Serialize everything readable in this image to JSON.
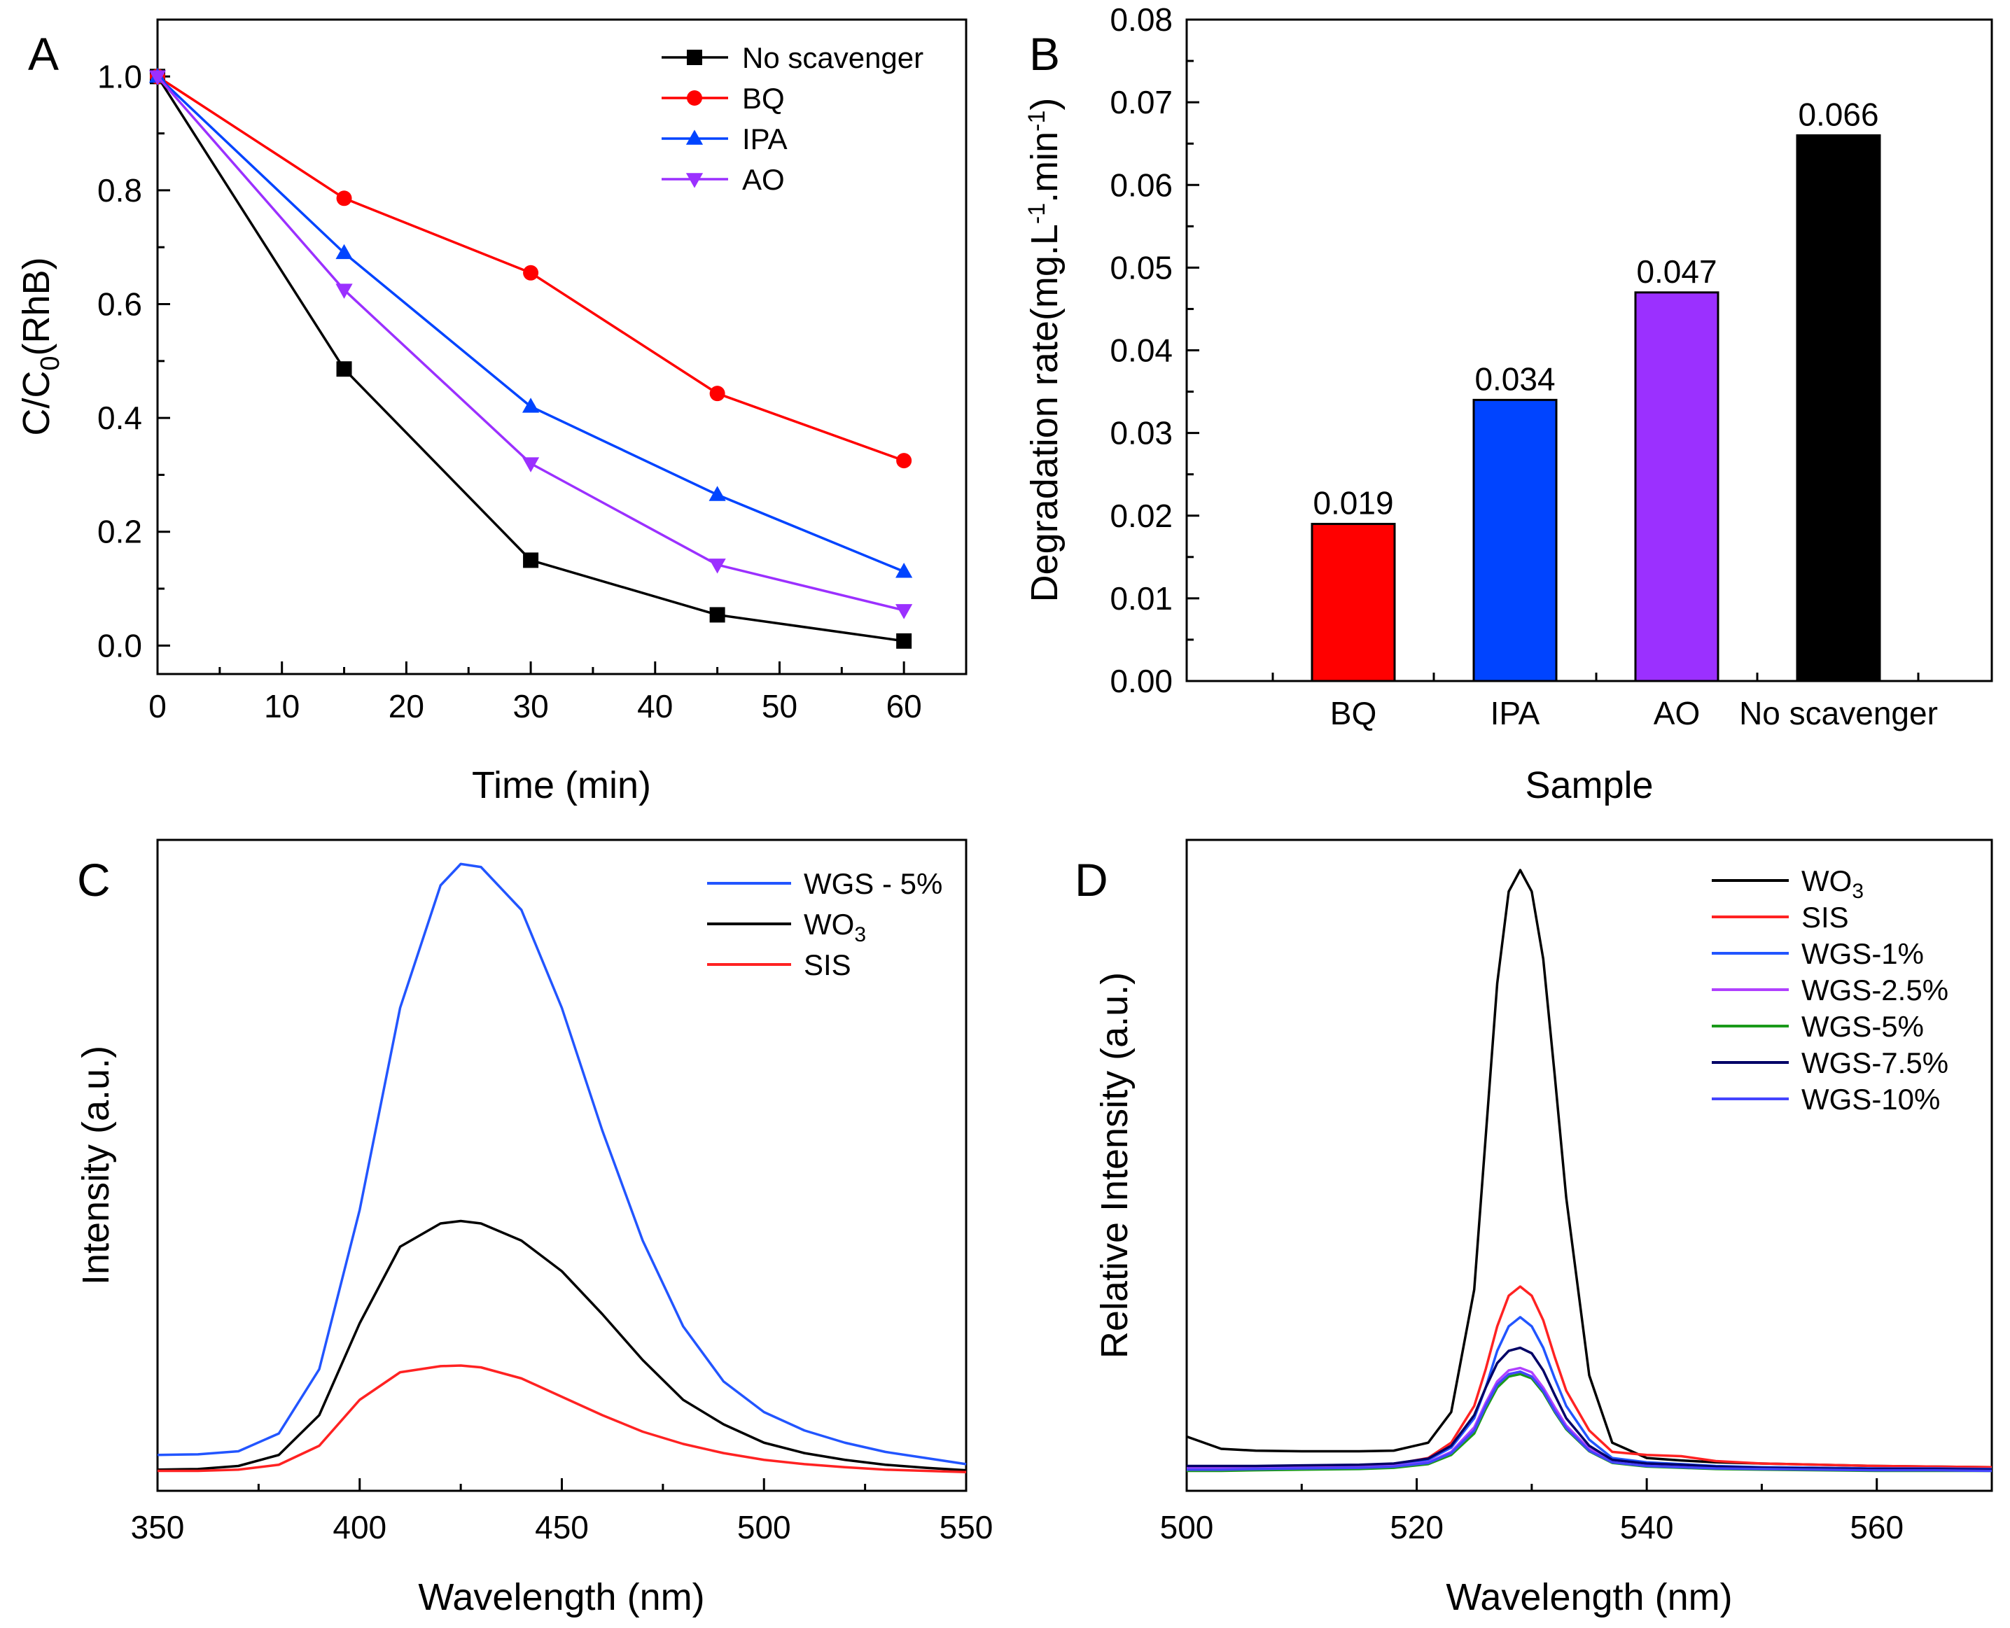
{
  "chart_data": [
    {
      "panel": "A",
      "type": "line",
      "xlabel": "Time (min)",
      "ylabel": "C/C",
      "ylabel_sub": "0",
      "ylabel_tail": "(RhB)",
      "xlim": [
        0,
        65
      ],
      "ylim": [
        -0.05,
        1.1
      ],
      "xticks": [
        0,
        10,
        20,
        30,
        40,
        50,
        60
      ],
      "yticks": [
        0.0,
        0.2,
        0.4,
        0.6,
        0.8,
        1.0
      ],
      "legend_position": "top-right",
      "x": [
        0,
        15,
        30,
        45,
        60
      ],
      "series": [
        {
          "name": "No scavenger",
          "color": "#000000",
          "marker": "square",
          "values": [
            1.0,
            0.486,
            0.15,
            0.054,
            0.008
          ]
        },
        {
          "name": "BQ",
          "color": "#ff0000",
          "marker": "circle",
          "values": [
            1.0,
            0.786,
            0.655,
            0.443,
            0.325
          ]
        },
        {
          "name": "IPA",
          "color": "#0044ff",
          "marker": "triangle-up",
          "values": [
            1.0,
            0.69,
            0.42,
            0.265,
            0.13
          ]
        },
        {
          "name": "AO",
          "color": "#9b30ff",
          "marker": "triangle-down",
          "values": [
            1.0,
            0.625,
            0.32,
            0.142,
            0.062
          ]
        }
      ]
    },
    {
      "panel": "B",
      "type": "bar",
      "xlabel": "Sample",
      "ylabel": "Degradation rate(mg.L",
      "ylabel_sup1": "-1",
      "ylabel_mid": ".min",
      "ylabel_sup2": "-1",
      "ylabel_tail": ")",
      "ylim": [
        0,
        0.08
      ],
      "yticks": [
        0.0,
        0.01,
        0.02,
        0.03,
        0.04,
        0.05,
        0.06,
        0.07,
        0.08
      ],
      "categories": [
        "BQ",
        "IPA",
        "AO",
        "No scavenger"
      ],
      "values": [
        0.019,
        0.034,
        0.047,
        0.066
      ],
      "colors": [
        "#ff0000",
        "#0044ff",
        "#9b30ff",
        "#000000"
      ]
    },
    {
      "panel": "C",
      "type": "line",
      "xlabel": "Wavelength (nm)",
      "ylabel": "Intensity (a.u.)",
      "xlim": [
        350,
        550
      ],
      "ylim": [
        0,
        1.0
      ],
      "xticks": [
        350,
        400,
        450,
        500,
        550
      ],
      "legend_position": "top-right",
      "x": [
        350,
        360,
        370,
        380,
        390,
        400,
        410,
        420,
        425,
        430,
        440,
        450,
        460,
        470,
        480,
        490,
        500,
        510,
        520,
        530,
        540,
        550
      ],
      "series": [
        {
          "name": "WGS - 5%",
          "color": "#2255ff",
          "values": [
            0.03,
            0.031,
            0.036,
            0.065,
            0.17,
            0.43,
            0.76,
            0.96,
            0.995,
            0.99,
            0.92,
            0.76,
            0.56,
            0.38,
            0.24,
            0.15,
            0.1,
            0.07,
            0.05,
            0.035,
            0.025,
            0.015
          ]
        },
        {
          "name": "WO3",
          "color": "#000000",
          "values": [
            0.006,
            0.007,
            0.012,
            0.03,
            0.095,
            0.245,
            0.37,
            0.408,
            0.412,
            0.408,
            0.38,
            0.33,
            0.26,
            0.185,
            0.12,
            0.08,
            0.05,
            0.033,
            0.022,
            0.014,
            0.009,
            0.005
          ]
        },
        {
          "name": "SIS",
          "color": "#ff2222",
          "values": [
            0.004,
            0.004,
            0.006,
            0.014,
            0.045,
            0.12,
            0.165,
            0.175,
            0.176,
            0.173,
            0.155,
            0.125,
            0.095,
            0.068,
            0.048,
            0.033,
            0.022,
            0.015,
            0.01,
            0.006,
            0.004,
            0.002
          ]
        }
      ]
    },
    {
      "panel": "D",
      "type": "line",
      "xlabel": "Wavelength (nm)",
      "ylabel": "Relative Intensity (a.u.)",
      "xlim": [
        500,
        570
      ],
      "ylim": [
        0,
        1.0
      ],
      "xticks": [
        500,
        520,
        540,
        560
      ],
      "legend_position": "top-right",
      "x": [
        500,
        503,
        506,
        510,
        515,
        518,
        521,
        523,
        525,
        526,
        527,
        528,
        529,
        530,
        531,
        532,
        533,
        535,
        537,
        540,
        543,
        546,
        550,
        555,
        560,
        565,
        570
      ],
      "series": [
        {
          "name": "WO3",
          "color": "#000000",
          "values": [
            0.06,
            0.04,
            0.037,
            0.036,
            0.036,
            0.037,
            0.05,
            0.1,
            0.3,
            0.55,
            0.8,
            0.95,
            0.985,
            0.95,
            0.84,
            0.65,
            0.45,
            0.16,
            0.05,
            0.025,
            0.021,
            0.018,
            0.016,
            0.014,
            0.012,
            0.011,
            0.01
          ]
        },
        {
          "name": "SIS",
          "color": "#ff2222",
          "values": [
            0.01,
            0.01,
            0.01,
            0.011,
            0.012,
            0.015,
            0.025,
            0.05,
            0.11,
            0.17,
            0.24,
            0.29,
            0.305,
            0.29,
            0.25,
            0.19,
            0.135,
            0.07,
            0.035,
            0.03,
            0.028,
            0.02,
            0.016,
            0.014,
            0.012,
            0.011,
            0.01
          ]
        },
        {
          "name": "WGS-1%",
          "color": "#2255ff",
          "values": [
            0.01,
            0.01,
            0.01,
            0.01,
            0.011,
            0.013,
            0.022,
            0.042,
            0.09,
            0.14,
            0.2,
            0.24,
            0.255,
            0.24,
            0.205,
            0.155,
            0.11,
            0.055,
            0.025,
            0.018,
            0.015,
            0.012,
            0.01,
            0.009,
            0.008,
            0.008,
            0.007
          ]
        },
        {
          "name": "WGS-2.5%",
          "color": "#b040ff",
          "values": [
            0.008,
            0.008,
            0.008,
            0.009,
            0.01,
            0.012,
            0.018,
            0.035,
            0.075,
            0.115,
            0.15,
            0.168,
            0.172,
            0.165,
            0.14,
            0.108,
            0.078,
            0.04,
            0.02,
            0.014,
            0.012,
            0.01,
            0.008,
            0.007,
            0.006,
            0.006,
            0.005
          ]
        },
        {
          "name": "WGS-5%",
          "color": "#1a9a1a",
          "values": [
            0.004,
            0.004,
            0.005,
            0.006,
            0.007,
            0.009,
            0.015,
            0.03,
            0.065,
            0.105,
            0.14,
            0.158,
            0.162,
            0.155,
            0.132,
            0.1,
            0.072,
            0.036,
            0.017,
            0.011,
            0.009,
            0.007,
            0.006,
            0.005,
            0.004,
            0.004,
            0.004
          ]
        },
        {
          "name": "WGS-7.5%",
          "color": "#000066",
          "values": [
            0.012,
            0.012,
            0.012,
            0.013,
            0.014,
            0.016,
            0.024,
            0.045,
            0.095,
            0.14,
            0.18,
            0.2,
            0.205,
            0.196,
            0.168,
            0.128,
            0.09,
            0.045,
            0.022,
            0.016,
            0.014,
            0.011,
            0.009,
            0.008,
            0.007,
            0.007,
            0.006
          ]
        },
        {
          "name": "WGS-10%",
          "color": "#4444ff",
          "values": [
            0.006,
            0.006,
            0.007,
            0.008,
            0.009,
            0.011,
            0.017,
            0.033,
            0.07,
            0.11,
            0.145,
            0.162,
            0.166,
            0.158,
            0.135,
            0.102,
            0.074,
            0.037,
            0.018,
            0.012,
            0.01,
            0.008,
            0.007,
            0.006,
            0.005,
            0.005,
            0.004
          ]
        }
      ]
    }
  ]
}
